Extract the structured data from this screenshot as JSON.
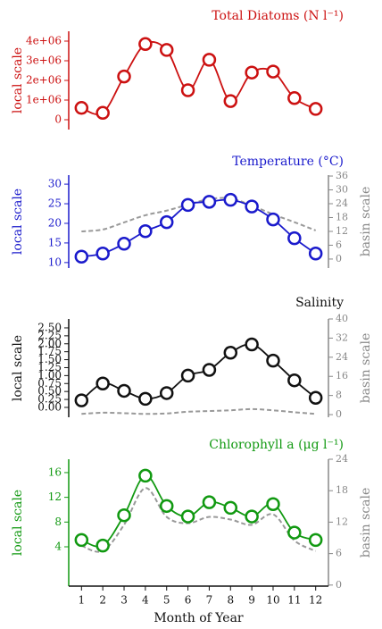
{
  "chart_data": [
    {
      "type": "line",
      "title": "Total Diatoms (N l⁻¹)",
      "ylabel": "local scale",
      "color": "#cc1111",
      "x": [
        1,
        2,
        3,
        4,
        5,
        6,
        7,
        8,
        9,
        10,
        11,
        12
      ],
      "series": [
        {
          "color": "#cc1111",
          "values": [
            600000,
            350000,
            2200000,
            3850000,
            3550000,
            1500000,
            3050000,
            950000,
            2400000,
            2450000,
            1100000,
            550000
          ]
        }
      ],
      "ylim": [
        -500000,
        4500000
      ],
      "yticks": [
        0,
        {
          "value": 1000000,
          "label": "1e+06"
        },
        {
          "value": 2000000,
          "label": "2e+06"
        },
        {
          "value": 3000000,
          "label": "3e+06"
        },
        {
          "value": 4000000,
          "label": "4e+06"
        }
      ]
    },
    {
      "type": "line",
      "title": "Temperature (°C)",
      "ylabel": "local scale",
      "y2label": "basin scale",
      "color": "#1a1acc",
      "x": [
        1,
        2,
        3,
        4,
        5,
        6,
        7,
        8,
        9,
        10,
        11,
        12
      ],
      "series": [
        {
          "color": "#1a1acc",
          "values": [
            11.5,
            12.3,
            14.8,
            18,
            20.3,
            24.7,
            25.5,
            26,
            24.3,
            21,
            16.2,
            12.3
          ]
        },
        {
          "color": "#999999",
          "axis": "y2",
          "dashed": true,
          "values": [
            12,
            12.8,
            15.9,
            19,
            21,
            23.6,
            26,
            26.3,
            23.2,
            19.4,
            16,
            12.4
          ]
        }
      ],
      "ylim": [
        8.6,
        32.3
      ],
      "yticks": [
        10,
        15,
        20,
        25,
        30
      ],
      "y2lim": [
        -3.9,
        36.4
      ],
      "y2ticks": [
        0,
        6,
        12,
        18,
        24,
        30,
        36
      ]
    },
    {
      "type": "line",
      "title": "Salinity",
      "ylabel": "local scale",
      "y2label": "basin scale",
      "color": "#111111",
      "x": [
        1,
        2,
        3,
        4,
        5,
        6,
        7,
        8,
        9,
        10,
        11,
        12
      ],
      "series": [
        {
          "color": "#111111",
          "values": [
            0.22,
            0.75,
            0.52,
            0.27,
            0.45,
            1.0,
            1.18,
            1.72,
            1.98,
            1.47,
            0.85,
            0.3
          ]
        },
        {
          "color": "#999999",
          "axis": "y2",
          "dashed": true,
          "values": [
            0.3,
            0.8,
            0.6,
            0.3,
            0.5,
            1.2,
            1.5,
            1.8,
            2.3,
            1.8,
            1.0,
            0.3
          ]
        }
      ],
      "ylim": [
        -0.31,
        2.78
      ],
      "yticks": [
        {
          "value": 0,
          "label": "0.00"
        },
        0.25,
        {
          "value": 0.5,
          "label": "0.50"
        },
        0.75,
        {
          "value": 1,
          "label": "1.00"
        },
        1.25,
        {
          "value": 1.5,
          "label": "1.50"
        },
        1.75,
        {
          "value": 2,
          "label": "2.00"
        },
        2.25,
        {
          "value": 2.5,
          "label": "2.50"
        }
      ],
      "y2lim": [
        -1.1,
        40
      ],
      "y2ticks": [
        0,
        8,
        16,
        24,
        32,
        40
      ]
    },
    {
      "type": "line",
      "title": "Chlorophyll a (μg l⁻¹)",
      "ylabel": "local scale",
      "y2label": "basin scale",
      "color": "#119911",
      "x": [
        1,
        2,
        3,
        4,
        5,
        6,
        7,
        8,
        9,
        10,
        11,
        12
      ],
      "series": [
        {
          "color": "#119911",
          "values": [
            5.1,
            4.2,
            9.1,
            15.5,
            10.6,
            8.9,
            11.2,
            10.3,
            8.9,
            10.9,
            6.3,
            5.1
          ]
        },
        {
          "color": "#999999",
          "axis": "y2",
          "dashed": true,
          "values": [
            7.5,
            6.5,
            11.5,
            18.5,
            13,
            11.8,
            13,
            12.5,
            11.5,
            13.5,
            8.5,
            6.5
          ]
        }
      ],
      "ylim": [
        -2.36,
        18.16
      ],
      "yticks": [
        4,
        8,
        12,
        16
      ],
      "y2lim": [
        -0.2,
        24
      ],
      "y2ticks": [
        0,
        6,
        12,
        18,
        24
      ],
      "xlabel": "Month of Year",
      "xlim": [
        0.4,
        12.6
      ],
      "xticks": [
        1,
        2,
        3,
        4,
        5,
        6,
        7,
        8,
        9,
        10,
        11,
        12
      ]
    }
  ]
}
